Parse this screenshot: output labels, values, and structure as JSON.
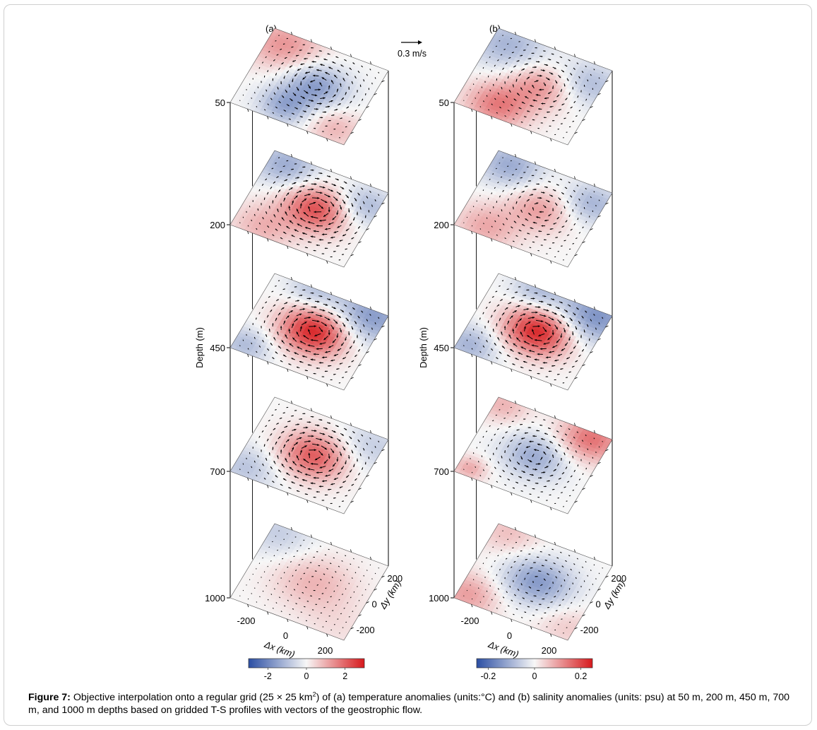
{
  "figure": {
    "panels": [
      {
        "label": "(a)",
        "quantity": "temperature",
        "units": "°C",
        "colorbar": {
          "ticks": [
            "-2",
            "0",
            "2"
          ],
          "range": [
            -3,
            3
          ]
        },
        "layers": [
          {
            "depth": "50",
            "features": [
              {
                "x": 25,
                "y": 25,
                "a": -0.55,
                "s": 110
              },
              {
                "x": -50,
                "y": -180,
                "a": -0.45,
                "s": 90
              },
              {
                "x": -200,
                "y": 200,
                "a": 0.45,
                "s": 130
              },
              {
                "x": 200,
                "y": -200,
                "a": 0.3,
                "s": 100
              }
            ]
          },
          {
            "depth": "200",
            "features": [
              {
                "x": 30,
                "y": 20,
                "a": 0.75,
                "s": 115
              },
              {
                "x": -200,
                "y": 220,
                "a": -0.45,
                "s": 110
              },
              {
                "x": 220,
                "y": 150,
                "a": -0.4,
                "s": 100
              },
              {
                "x": -150,
                "y": -220,
                "a": 0.3,
                "s": 110
              }
            ]
          },
          {
            "depth": "450",
            "features": [
              {
                "x": 20,
                "y": 15,
                "a": 0.95,
                "s": 115
              },
              {
                "x": 220,
                "y": 240,
                "a": -0.55,
                "s": 130
              },
              {
                "x": -230,
                "y": -230,
                "a": -0.35,
                "s": 90
              },
              {
                "x": -80,
                "y": 270,
                "a": -0.3,
                "s": 90
              }
            ]
          },
          {
            "depth": "700",
            "features": [
              {
                "x": 20,
                "y": 10,
                "a": 0.7,
                "s": 115
              },
              {
                "x": -230,
                "y": -220,
                "a": -0.3,
                "s": 110
              },
              {
                "x": 240,
                "y": 200,
                "a": -0.25,
                "s": 120
              }
            ]
          },
          {
            "depth": "1000",
            "features": [
              {
                "x": 20,
                "y": 10,
                "a": 0.3,
                "s": 140
              },
              {
                "x": -240,
                "y": 230,
                "a": -0.25,
                "s": 120
              },
              {
                "x": 240,
                "y": -220,
                "a": 0.1,
                "s": 120
              }
            ]
          }
        ]
      },
      {
        "label": "(b)",
        "quantity": "salinity",
        "units": "psu",
        "colorbar": {
          "ticks": [
            "-0.2",
            "0",
            "0.2"
          ],
          "range": [
            -0.25,
            0.25
          ]
        },
        "layers": [
          {
            "depth": "50",
            "features": [
              {
                "x": 25,
                "y": 25,
                "a": 0.45,
                "s": 110
              },
              {
                "x": -100,
                "y": -200,
                "a": 0.55,
                "s": 110
              },
              {
                "x": -200,
                "y": 200,
                "a": -0.4,
                "s": 130
              },
              {
                "x": 230,
                "y": 150,
                "a": -0.35,
                "s": 110
              }
            ]
          },
          {
            "depth": "200",
            "features": [
              {
                "x": 30,
                "y": 20,
                "a": 0.4,
                "s": 110
              },
              {
                "x": -200,
                "y": 220,
                "a": -0.45,
                "s": 110
              },
              {
                "x": 230,
                "y": 170,
                "a": -0.4,
                "s": 100
              },
              {
                "x": -150,
                "y": -220,
                "a": 0.35,
                "s": 110
              }
            ]
          },
          {
            "depth": "450",
            "features": [
              {
                "x": 20,
                "y": 15,
                "a": 0.95,
                "s": 115
              },
              {
                "x": 220,
                "y": 240,
                "a": -0.6,
                "s": 130
              },
              {
                "x": -230,
                "y": -230,
                "a": -0.4,
                "s": 100
              },
              {
                "x": -80,
                "y": 270,
                "a": -0.35,
                "s": 90
              }
            ]
          },
          {
            "depth": "700",
            "features": [
              {
                "x": 10,
                "y": 0,
                "a": -0.45,
                "s": 110
              },
              {
                "x": 200,
                "y": 240,
                "a": 0.6,
                "s": 110
              },
              {
                "x": -230,
                "y": -230,
                "a": 0.35,
                "s": 60
              },
              {
                "x": -250,
                "y": 250,
                "a": 0.3,
                "s": 90
              }
            ]
          },
          {
            "depth": "1000",
            "features": [
              {
                "x": 20,
                "y": 10,
                "a": -0.55,
                "s": 120
              },
              {
                "x": -240,
                "y": -230,
                "a": 0.4,
                "s": 110
              },
              {
                "x": -220,
                "y": 250,
                "a": 0.25,
                "s": 110
              },
              {
                "x": 250,
                "y": -200,
                "a": 0.2,
                "s": 110
              }
            ]
          }
        ]
      }
    ],
    "depth_axis_label": "Depth (m)",
    "x_axis": {
      "label": "Δx (km)",
      "ticks": [
        "-200",
        "0",
        "200"
      ]
    },
    "y_axis": {
      "label": "Δy (km)",
      "ticks": [
        "-200",
        "0",
        "200"
      ]
    },
    "vector_scale_label": "0.3 m/s",
    "colors": {
      "negative": "#2b4ea3",
      "zero": "#f7f7f7",
      "positive": "#d7191c"
    }
  },
  "caption": {
    "prefix": "Figure 7:",
    "text_1": " Objective interpolation onto a regular grid (25 × 25 km",
    "sup": "2",
    "text_2": ") of (a) temperature anomalies (units:°C) and (b) salinity anomalies (units: psu) at 50 m, 200 m, 450 m, 700 m, and 1000 m depths based on gridded T-S profiles with vectors of the geostrophic flow."
  }
}
